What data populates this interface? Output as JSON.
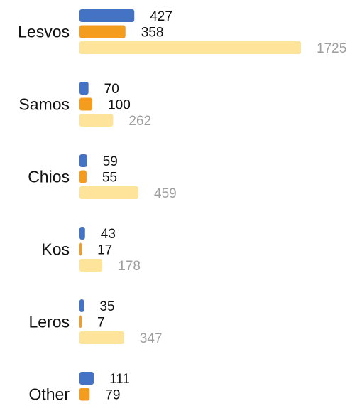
{
  "chart_data": {
    "type": "bar",
    "orientation": "horizontal",
    "categories": [
      "Lesvos",
      "Samos",
      "Chios",
      "Kos",
      "Leros",
      "Other"
    ],
    "series": [
      {
        "values": [
          427,
          70,
          59,
          43,
          35,
          111
        ],
        "color": "#4472C4",
        "label_color": "#111111"
      },
      {
        "values": [
          358,
          100,
          55,
          17,
          7,
          79
        ],
        "color": "#F39C1E",
        "label_color": "#111111"
      },
      {
        "values": [
          1725,
          262,
          459,
          178,
          347,
          null
        ],
        "color": "#FDE49A",
        "label_color": "#9E9E9E"
      }
    ],
    "xlim": [
      0,
      1725
    ],
    "grid": false,
    "legend": "none",
    "data_labels": true
  }
}
